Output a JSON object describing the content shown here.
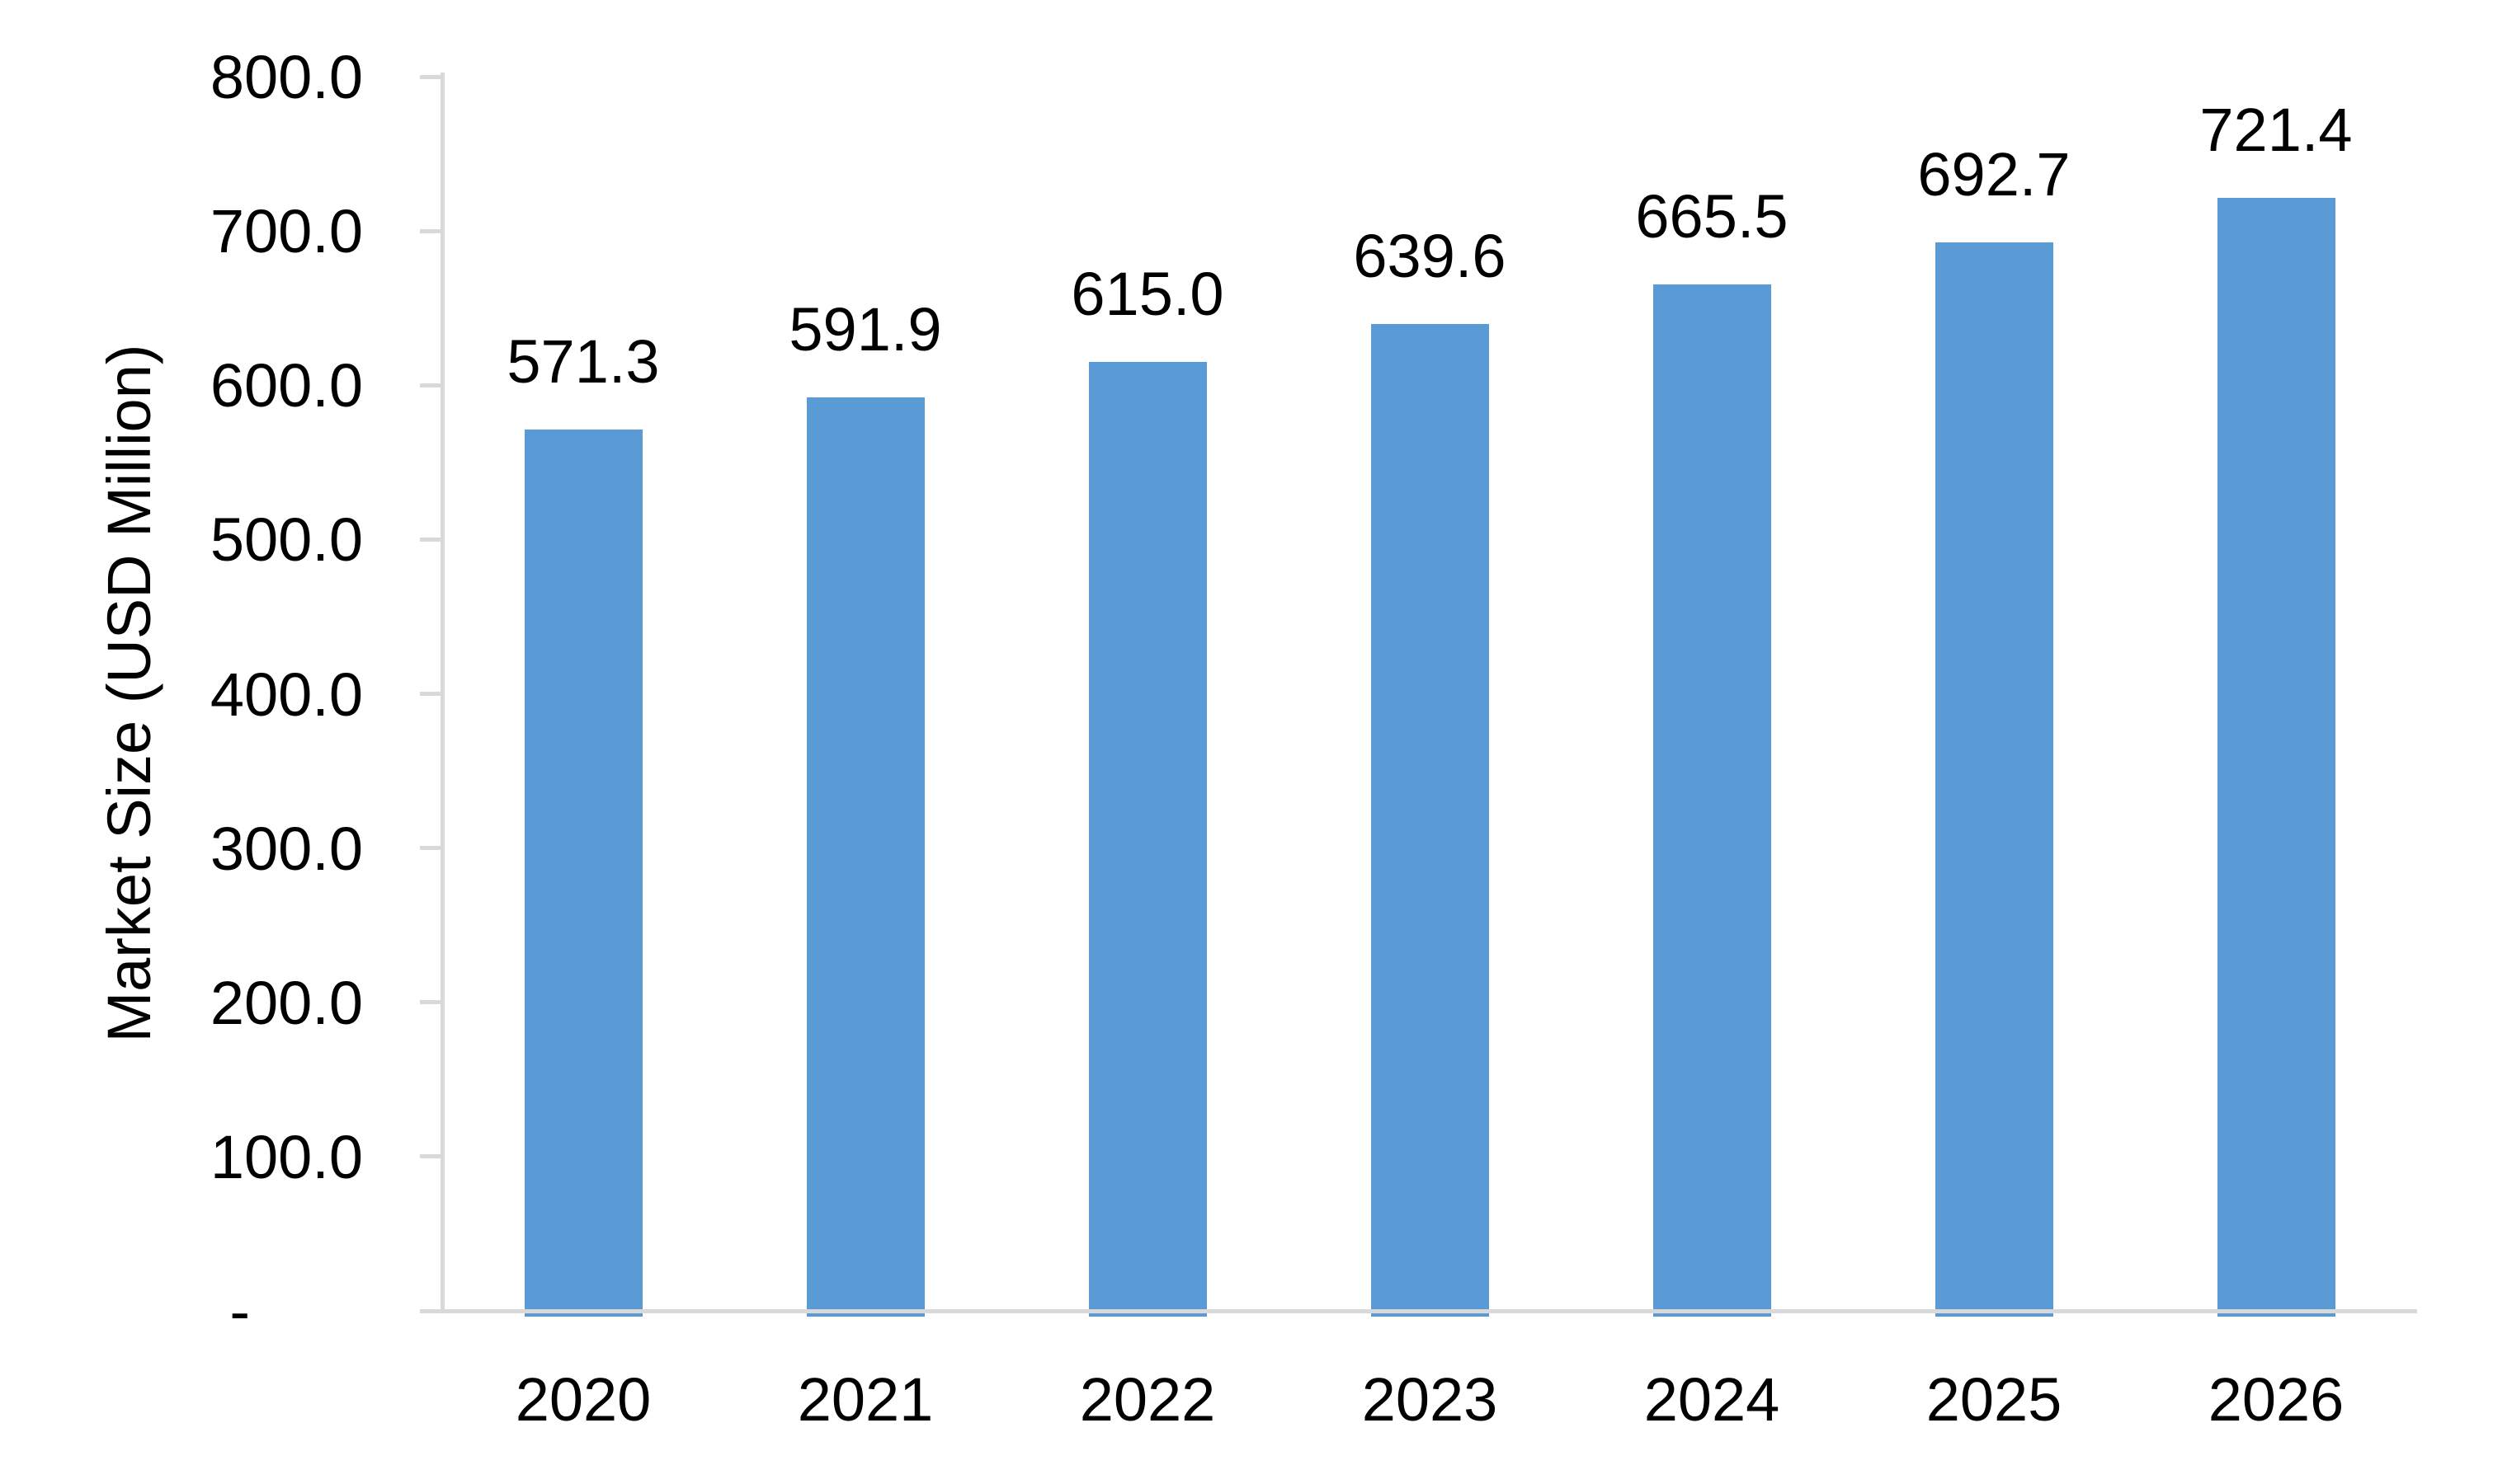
{
  "chart_data": {
    "type": "bar",
    "title": "",
    "categories": [
      "2020",
      "2021",
      "2022",
      "2023",
      "2024",
      "2025",
      "2026"
    ],
    "values": [
      571.3,
      591.9,
      615.0,
      639.6,
      665.5,
      692.7,
      721.4
    ],
    "data_labels": [
      "571.3",
      "591.9",
      "615.0",
      "639.6",
      "665.5",
      "692.7",
      "721.4"
    ],
    "xlabel": "",
    "ylabel": "Market Size (USD Million)",
    "ylim": [
      0,
      800
    ],
    "y_tick_step": 100,
    "y_tick_labels": [
      "800.0",
      "700.0",
      "600.0",
      "500.0",
      "400.0",
      "300.0",
      "200.0",
      "100.0",
      "-"
    ],
    "grid": false,
    "legend": false,
    "series_name": "Market Size",
    "colors": {
      "bar": "#5B9BD5",
      "axis": "#D9D9D9",
      "text": "#000000",
      "background": "#FFFFFF"
    }
  }
}
